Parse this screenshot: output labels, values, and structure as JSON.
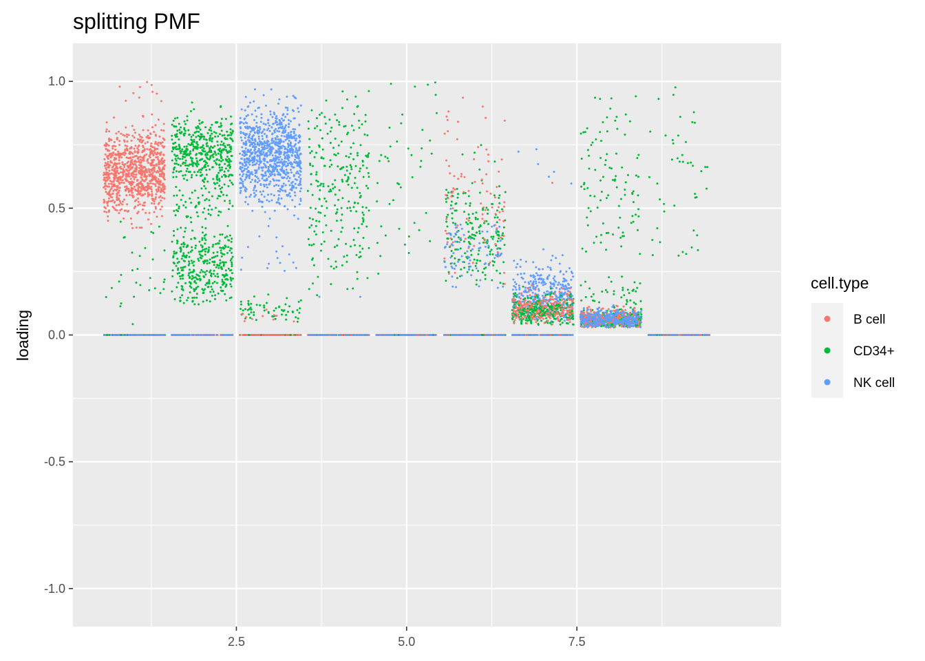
{
  "chart_data": {
    "type": "scatter",
    "title": "splitting PMF",
    "xlabel": "",
    "ylabel": "loading",
    "xlim": [
      0.1,
      10.5
    ],
    "ylim": [
      -1.15,
      1.15
    ],
    "x_ticks": [
      2.5,
      5.0,
      7.5
    ],
    "x_tick_labels": [
      "2.5",
      "5.0",
      "7.5"
    ],
    "y_ticks": [
      -1.0,
      -0.5,
      0.0,
      0.5,
      1.0
    ],
    "y_tick_labels": [
      "-1.0",
      "-0.5",
      "0.0",
      "0.5",
      "1.0"
    ],
    "grid": true,
    "jitter_width": 0.45,
    "legend": {
      "title": "cell.type",
      "position": "right",
      "entries": [
        "B cell",
        "CD34+",
        "NK cell"
      ]
    },
    "colors": {
      "B cell": "#F8766D",
      "CD34+": "#00BA38",
      "NK cell": "#619CFF",
      "panel_background": "#EBEBEB",
      "grid_line": "#FFFFFF"
    },
    "groups": [
      {
        "factor": 1,
        "clusters": [
          {
            "series": "B cell",
            "n": 900,
            "min": 0.42,
            "max": 0.87,
            "mean": 0.64,
            "sd": 0.08
          },
          {
            "series": "CD34+",
            "n": 30,
            "min": 0.04,
            "max": 0.45,
            "mean": 0.2,
            "sd": 0.15
          },
          {
            "series": "B cell",
            "n": 10,
            "min": 0.9,
            "max": 1.0,
            "mean": 0.95,
            "sd": 0.03
          },
          {
            "series": "CD34+",
            "n": 80,
            "min": 0.0,
            "max": 0.0,
            "mean": 0.0,
            "sd": 0.0
          },
          {
            "series": "NK cell",
            "n": 60,
            "min": 0.0,
            "max": 0.0,
            "mean": 0.0,
            "sd": 0.0
          }
        ]
      },
      {
        "factor": 2,
        "clusters": [
          {
            "series": "CD34+",
            "n": 450,
            "min": 0.55,
            "max": 0.98,
            "mean": 0.72,
            "sd": 0.07
          },
          {
            "series": "CD34+",
            "n": 350,
            "min": 0.12,
            "max": 0.48,
            "mean": 0.27,
            "sd": 0.08
          },
          {
            "series": "CD34+",
            "n": 60,
            "min": 0.45,
            "max": 0.6,
            "mean": 0.52,
            "sd": 0.04
          },
          {
            "series": "B cell",
            "n": 60,
            "min": 0.0,
            "max": 0.0,
            "mean": 0.0,
            "sd": 0.0
          },
          {
            "series": "NK cell",
            "n": 60,
            "min": 0.0,
            "max": 0.0,
            "mean": 0.0,
            "sd": 0.0
          }
        ]
      },
      {
        "factor": 3,
        "clusters": [
          {
            "series": "NK cell",
            "n": 900,
            "min": 0.4,
            "max": 0.97,
            "mean": 0.71,
            "sd": 0.09
          },
          {
            "series": "CD34+",
            "n": 60,
            "min": 0.05,
            "max": 0.17,
            "mean": 0.1,
            "sd": 0.03
          },
          {
            "series": "B cell",
            "n": 10,
            "min": 0.05,
            "max": 0.1,
            "mean": 0.07,
            "sd": 0.02
          },
          {
            "series": "NK cell",
            "n": 15,
            "min": 0.25,
            "max": 0.4,
            "mean": 0.32,
            "sd": 0.05
          },
          {
            "series": "CD34+",
            "n": 80,
            "min": 0.0,
            "max": 0.0,
            "mean": 0.0,
            "sd": 0.0
          },
          {
            "series": "B cell",
            "n": 60,
            "min": 0.0,
            "max": 0.0,
            "mean": 0.0,
            "sd": 0.0
          }
        ]
      },
      {
        "factor": 4,
        "clusters": [
          {
            "series": "CD34+",
            "n": 250,
            "min": 0.15,
            "max": 0.98,
            "mean": 0.6,
            "sd": 0.2
          },
          {
            "series": "NK cell",
            "n": 2,
            "min": 0.14,
            "max": 0.16,
            "mean": 0.15,
            "sd": 0.01
          },
          {
            "series": "CD34+",
            "n": 70,
            "min": 0.0,
            "max": 0.0,
            "mean": 0.0,
            "sd": 0.0
          },
          {
            "series": "B cell",
            "n": 60,
            "min": 0.0,
            "max": 0.0,
            "mean": 0.0,
            "sd": 0.0
          },
          {
            "series": "NK cell",
            "n": 50,
            "min": 0.0,
            "max": 0.0,
            "mean": 0.0,
            "sd": 0.0
          }
        ]
      },
      {
        "factor": 5,
        "clusters": [
          {
            "series": "CD34+",
            "n": 45,
            "min": 0.2,
            "max": 1.0,
            "mean": 0.65,
            "sd": 0.25
          },
          {
            "series": "CD34+",
            "n": 70,
            "min": 0.0,
            "max": 0.0,
            "mean": 0.0,
            "sd": 0.0
          },
          {
            "series": "B cell",
            "n": 60,
            "min": 0.0,
            "max": 0.0,
            "mean": 0.0,
            "sd": 0.0
          },
          {
            "series": "NK cell",
            "n": 50,
            "min": 0.0,
            "max": 0.0,
            "mean": 0.0,
            "sd": 0.0
          }
        ]
      },
      {
        "factor": 6,
        "clusters": [
          {
            "series": "CD34+",
            "n": 200,
            "min": 0.19,
            "max": 0.75,
            "mean": 0.4,
            "sd": 0.12
          },
          {
            "series": "B cell",
            "n": 90,
            "min": 0.2,
            "max": 1.0,
            "mean": 0.5,
            "sd": 0.2
          },
          {
            "series": "NK cell",
            "n": 80,
            "min": 0.18,
            "max": 0.55,
            "mean": 0.32,
            "sd": 0.08
          },
          {
            "series": "CD34+",
            "n": 70,
            "min": 0.0,
            "max": 0.0,
            "mean": 0.0,
            "sd": 0.0
          },
          {
            "series": "B cell",
            "n": 60,
            "min": 0.0,
            "max": 0.0,
            "mean": 0.0,
            "sd": 0.0
          },
          {
            "series": "NK cell",
            "n": 40,
            "min": 0.0,
            "max": 0.0,
            "mean": 0.0,
            "sd": 0.0
          }
        ]
      },
      {
        "factor": 7,
        "clusters": [
          {
            "series": "NK cell",
            "n": 400,
            "min": 0.05,
            "max": 0.35,
            "mean": 0.15,
            "sd": 0.06
          },
          {
            "series": "CD34+",
            "n": 350,
            "min": 0.04,
            "max": 0.2,
            "mean": 0.09,
            "sd": 0.03
          },
          {
            "series": "B cell",
            "n": 200,
            "min": 0.04,
            "max": 0.2,
            "mean": 0.1,
            "sd": 0.03
          },
          {
            "series": "NK cell",
            "n": 6,
            "min": 0.48,
            "max": 1.0,
            "mean": 0.7,
            "sd": 0.15
          },
          {
            "series": "B cell",
            "n": 1,
            "min": 0.6,
            "max": 0.6,
            "mean": 0.6,
            "sd": 0.0
          },
          {
            "series": "CD34+",
            "n": 50,
            "min": 0.0,
            "max": 0.0,
            "mean": 0.0,
            "sd": 0.0
          },
          {
            "series": "B cell",
            "n": 50,
            "min": 0.0,
            "max": 0.0,
            "mean": 0.0,
            "sd": 0.0
          },
          {
            "series": "NK cell",
            "n": 50,
            "min": 0.0,
            "max": 0.0,
            "mean": 0.0,
            "sd": 0.0
          }
        ]
      },
      {
        "factor": 8,
        "clusters": [
          {
            "series": "CD34+",
            "n": 400,
            "min": 0.03,
            "max": 0.12,
            "mean": 0.055,
            "sd": 0.018
          },
          {
            "series": "B cell",
            "n": 300,
            "min": 0.03,
            "max": 0.12,
            "mean": 0.06,
            "sd": 0.02
          },
          {
            "series": "NK cell",
            "n": 300,
            "min": 0.03,
            "max": 0.12,
            "mean": 0.06,
            "sd": 0.02
          },
          {
            "series": "CD34+",
            "n": 100,
            "min": 0.25,
            "max": 1.0,
            "mean": 0.6,
            "sd": 0.2
          },
          {
            "series": "CD34+",
            "n": 40,
            "min": 0.1,
            "max": 0.25,
            "mean": 0.16,
            "sd": 0.04
          }
        ]
      },
      {
        "factor": 9,
        "clusters": [
          {
            "series": "CD34+",
            "n": 45,
            "min": 0.2,
            "max": 1.0,
            "mean": 0.6,
            "sd": 0.2
          },
          {
            "series": "CD34+",
            "n": 60,
            "min": 0.0,
            "max": 0.0,
            "mean": 0.0,
            "sd": 0.0
          },
          {
            "series": "B cell",
            "n": 40,
            "min": 0.0,
            "max": 0.0,
            "mean": 0.0,
            "sd": 0.0
          },
          {
            "series": "NK cell",
            "n": 40,
            "min": 0.0,
            "max": 0.0,
            "mean": 0.0,
            "sd": 0.0
          }
        ]
      }
    ]
  }
}
